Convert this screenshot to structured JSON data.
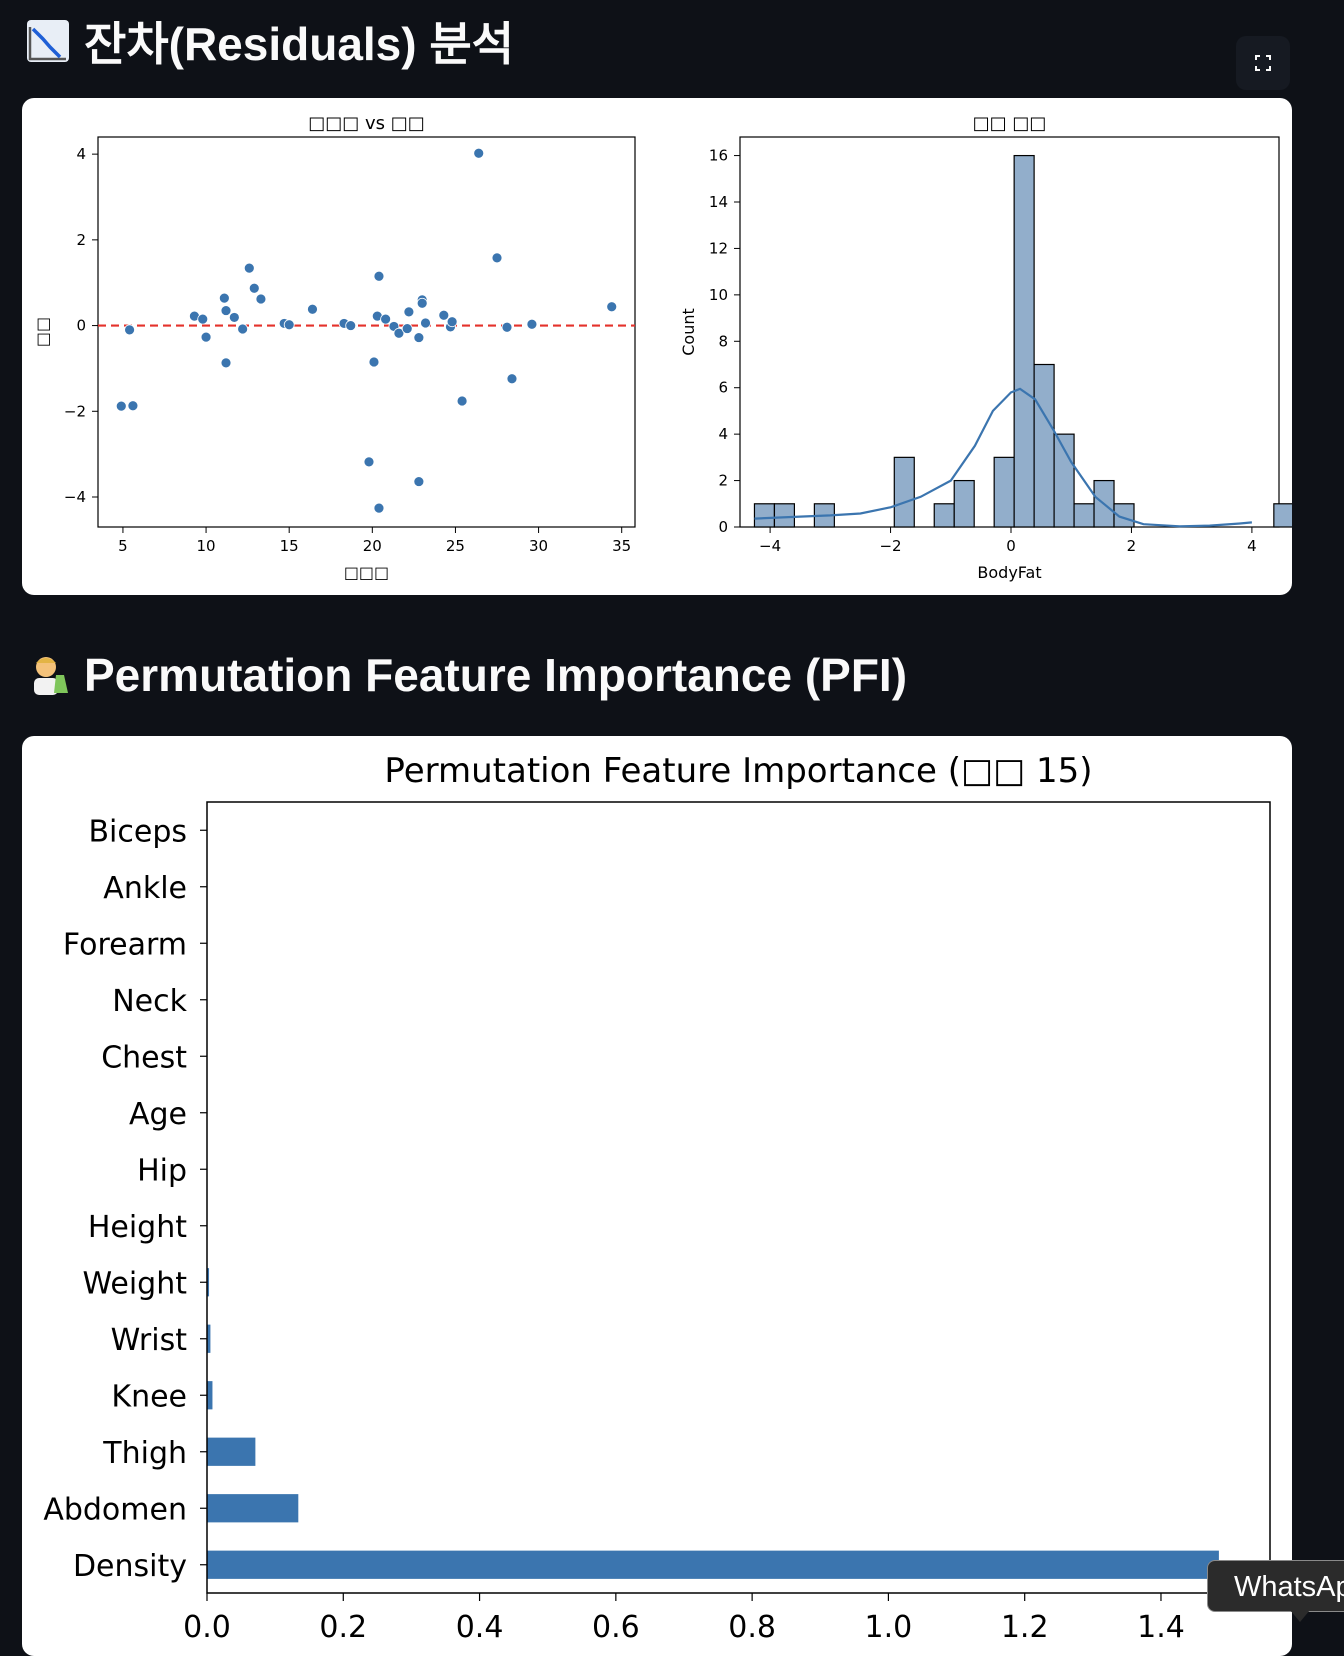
{
  "residual_section": {
    "icon": "chart-decreasing-icon",
    "title": "잔차(Residuals) 분석"
  },
  "pfi_section": {
    "icon": "scientist-emoji-icon",
    "title": "Permutation Feature Importance (PFI)"
  },
  "toolbar": {
    "fullscreen_icon": "fullscreen-icon"
  },
  "colors": {
    "page_bg": "#0e1117",
    "point": "#3b75af",
    "reference_line": "#e4322b",
    "bar": "#3b75af",
    "hist_fill": "#92aecb"
  },
  "tooltip": {
    "text": "WhatsAp"
  },
  "chart_data": [
    {
      "type": "scatter",
      "title": "□□□ vs □□",
      "xlabel": "□□□",
      "ylabel": "□□",
      "xlim": [
        3.5,
        35.8
      ],
      "ylim": [
        -4.7,
        4.4
      ],
      "xticks": [
        "5",
        "10",
        "15",
        "20",
        "25",
        "30",
        "35"
      ],
      "yticks": [
        "−4",
        "−2",
        "0",
        "2",
        "4"
      ],
      "reference_line": {
        "y": 0,
        "style": "dashed"
      },
      "points": [
        {
          "x": 4.9,
          "y": -1.88
        },
        {
          "x": 5.4,
          "y": -0.1
        },
        {
          "x": 5.6,
          "y": -1.87
        },
        {
          "x": 9.3,
          "y": 0.22
        },
        {
          "x": 9.8,
          "y": 0.15
        },
        {
          "x": 10.0,
          "y": -0.27
        },
        {
          "x": 11.1,
          "y": 0.64
        },
        {
          "x": 11.2,
          "y": 0.35
        },
        {
          "x": 11.2,
          "y": -0.87
        },
        {
          "x": 11.7,
          "y": 0.19
        },
        {
          "x": 12.2,
          "y": -0.08
        },
        {
          "x": 12.6,
          "y": 1.34
        },
        {
          "x": 12.9,
          "y": 0.87
        },
        {
          "x": 13.3,
          "y": 0.62
        },
        {
          "x": 14.7,
          "y": 0.05
        },
        {
          "x": 15.0,
          "y": 0.02
        },
        {
          "x": 16.4,
          "y": 0.38
        },
        {
          "x": 18.3,
          "y": 0.05
        },
        {
          "x": 18.7,
          "y": 0.0
        },
        {
          "x": 19.8,
          "y": -3.18
        },
        {
          "x": 20.1,
          "y": -0.85
        },
        {
          "x": 20.3,
          "y": 0.22
        },
        {
          "x": 20.4,
          "y": -4.26
        },
        {
          "x": 20.4,
          "y": 1.15
        },
        {
          "x": 20.8,
          "y": 0.15
        },
        {
          "x": 21.3,
          "y": -0.02
        },
        {
          "x": 21.6,
          "y": -0.18
        },
        {
          "x": 22.1,
          "y": -0.07
        },
        {
          "x": 22.2,
          "y": 0.32
        },
        {
          "x": 22.8,
          "y": -0.28
        },
        {
          "x": 22.8,
          "y": -3.64
        },
        {
          "x": 23.0,
          "y": 0.6
        },
        {
          "x": 23.0,
          "y": 0.52
        },
        {
          "x": 23.2,
          "y": 0.06
        },
        {
          "x": 24.3,
          "y": 0.24
        },
        {
          "x": 24.7,
          "y": -0.03
        },
        {
          "x": 24.8,
          "y": 0.09
        },
        {
          "x": 25.4,
          "y": -1.76
        },
        {
          "x": 26.4,
          "y": 4.02
        },
        {
          "x": 27.5,
          "y": 1.58
        },
        {
          "x": 28.1,
          "y": -0.04
        },
        {
          "x": 28.4,
          "y": -1.24
        },
        {
          "x": 29.6,
          "y": 0.03
        },
        {
          "x": 34.4,
          "y": 0.44
        }
      ]
    },
    {
      "type": "histogram",
      "title": "□□ □□",
      "xlabel": "BodyFat",
      "ylabel": "Count",
      "xlim": [
        -4.5,
        4.45
      ],
      "ylim": [
        0,
        16.8
      ],
      "xticks": [
        {
          "v": -4,
          "label": "−4"
        },
        {
          "v": -2,
          "label": "−2"
        },
        {
          "v": 0,
          "label": "0"
        },
        {
          "v": 2,
          "label": "2"
        },
        {
          "v": 4,
          "label": "4"
        }
      ],
      "yticks": [
        "0",
        "2",
        "4",
        "6",
        "8",
        "10",
        "12",
        "14",
        "16"
      ],
      "bin_start": -4.26,
      "bin_width": 0.3317,
      "counts": [
        1,
        1,
        0,
        1,
        0,
        0,
        0,
        3,
        0,
        1,
        2,
        0,
        3,
        16,
        7,
        4,
        1,
        2,
        1,
        0,
        0,
        0,
        0,
        0,
        0,
        0,
        1
      ],
      "kde": [
        {
          "x": -4.26,
          "y": 0.36
        },
        {
          "x": -3.5,
          "y": 0.45
        },
        {
          "x": -3.0,
          "y": 0.5
        },
        {
          "x": -2.5,
          "y": 0.58
        },
        {
          "x": -2.0,
          "y": 0.85
        },
        {
          "x": -1.5,
          "y": 1.3
        },
        {
          "x": -1.0,
          "y": 2.0
        },
        {
          "x": -0.6,
          "y": 3.5
        },
        {
          "x": -0.3,
          "y": 5.0
        },
        {
          "x": 0.0,
          "y": 5.8
        },
        {
          "x": 0.15,
          "y": 5.95
        },
        {
          "x": 0.4,
          "y": 5.5
        },
        {
          "x": 0.7,
          "y": 4.2
        },
        {
          "x": 1.0,
          "y": 2.8
        },
        {
          "x": 1.4,
          "y": 1.3
        },
        {
          "x": 1.8,
          "y": 0.45
        },
        {
          "x": 2.2,
          "y": 0.12
        },
        {
          "x": 2.8,
          "y": 0.03
        },
        {
          "x": 3.3,
          "y": 0.06
        },
        {
          "x": 3.8,
          "y": 0.15
        },
        {
          "x": 4.0,
          "y": 0.2
        }
      ]
    },
    {
      "type": "bar",
      "orientation": "horizontal",
      "title": "Permutation Feature Importance (□□ 15)",
      "xlim": [
        0,
        1.56
      ],
      "xticks": [
        "0.0",
        "0.2",
        "0.4",
        "0.6",
        "0.8",
        "1.0",
        "1.2",
        "1.4"
      ],
      "categories": [
        "Biceps",
        "Ankle",
        "Forearm",
        "Neck",
        "Chest",
        "Age",
        "Hip",
        "Height",
        "Weight",
        "Wrist",
        "Knee",
        "Thigh",
        "Abdomen",
        "Density"
      ],
      "values": [
        0.0,
        0.0,
        0.0,
        0.0,
        0.0,
        0.0,
        0.0,
        0.0,
        0.003,
        0.005,
        0.008,
        0.071,
        0.134,
        1.485
      ]
    }
  ]
}
